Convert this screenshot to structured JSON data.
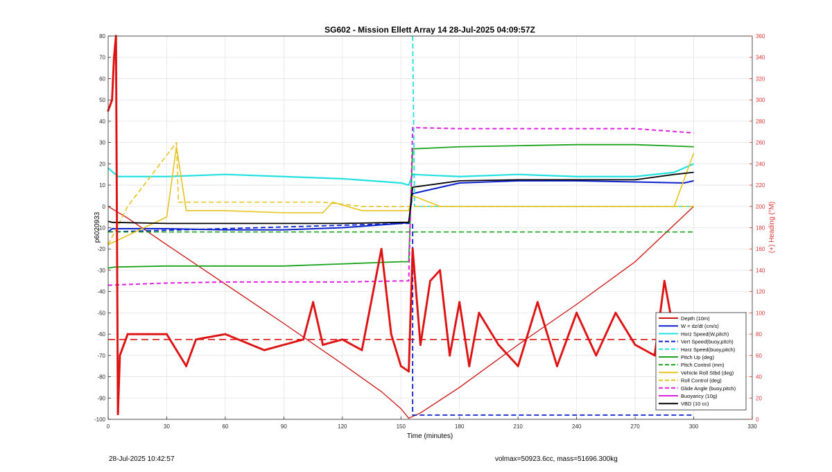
{
  "title": "SG602 - Mission Ellett Array 14 28-Jul-2025 04:09:57Z",
  "footer": {
    "date": "28-Jul-2025 10:42:57",
    "volmass": "volmax=50923.6cc, mass=51696.300kg"
  },
  "chart_data": {
    "type": "line",
    "title": "SG602 - Mission Ellett Array 14 28-Jul-2025 04:09:57Z",
    "xlabel": "Time (minutes)",
    "ylabel_left": "p6020933",
    "ylabel_right": "(+) Heading (°M)",
    "xlim": [
      0,
      330
    ],
    "ylim_left": [
      -100,
      80
    ],
    "ylim_right": [
      0,
      360
    ],
    "xticks": [
      0,
      30,
      60,
      90,
      120,
      150,
      180,
      210,
      240,
      270,
      300,
      330
    ],
    "yticks_left": [
      -100,
      -90,
      -80,
      -70,
      -60,
      -50,
      -40,
      -30,
      -20,
      -10,
      0,
      10,
      20,
      30,
      40,
      50,
      60,
      70,
      80
    ],
    "yticks_right": [
      0,
      20,
      40,
      60,
      80,
      100,
      120,
      140,
      160,
      180,
      200,
      220,
      240,
      260,
      280,
      300,
      320,
      340,
      360
    ],
    "grid": true,
    "legend_position": "bottom-right",
    "colors": {
      "depth": "#cc1111",
      "w": "#0a1fcc",
      "horz": "#22e0e0",
      "green": "#19a319",
      "yellow": "#e6c21a",
      "magenta": "#e020e0",
      "black": "#000000",
      "heading": "#dd1111",
      "right_axis": "#dd3333"
    },
    "legend": [
      {
        "label": "Depth (10m)",
        "color": "#cc1111",
        "dash": false
      },
      {
        "label": "W = dz/dt (cm/s)",
        "color": "#0a1fcc",
        "dash": false
      },
      {
        "label": "Horz Speed(W,pitch)",
        "color": "#22e0e0",
        "dash": false
      },
      {
        "label": "Vert Speed(buoy,pitch)",
        "color": "#0a1fcc",
        "dash": true
      },
      {
        "label": "Horz Speed(buoy,pitch)",
        "color": "#22e0e0",
        "dash": true
      },
      {
        "label": "Pitch Up (deg)",
        "color": "#19a319",
        "dash": false
      },
      {
        "label": "Pitch Control (mm)",
        "color": "#19a319",
        "dash": true
      },
      {
        "label": "Vehicle Roll Stbd (deg)",
        "color": "#e6c21a",
        "dash": false
      },
      {
        "label": "Roll Control (deg)",
        "color": "#e6c21a",
        "dash": true
      },
      {
        "label": "Glide Angle (buoy,pitch)",
        "color": "#e020e0",
        "dash": true
      },
      {
        "label": "Buoyancy (10g)",
        "color": "#e020e0",
        "dash": false
      },
      {
        "label": "VBD (10 cc)",
        "color": "#000000",
        "dash": false
      }
    ],
    "series": [
      {
        "name": "Depth (10m)",
        "x": [
          0,
          10,
          30,
          60,
          90,
          120,
          140,
          150,
          154,
          160,
          180,
          210,
          240,
          270,
          300
        ],
        "y": [
          0,
          -5.5,
          -18,
          -36.5,
          -55,
          -74,
          -87,
          -95,
          -99.5,
          -97,
          -85,
          -65,
          -46,
          -26,
          0
        ]
      },
      {
        "name": "W = dz/dt (cm/s)",
        "x": [
          0,
          2,
          30,
          60,
          90,
          120,
          150,
          154,
          156,
          180,
          210,
          240,
          270,
          295,
          300
        ],
        "y": [
          -12,
          -10.5,
          -10.5,
          -11,
          -11,
          -10,
          -8,
          -7.5,
          6,
          11,
          12,
          12,
          11.5,
          11,
          12
        ]
      },
      {
        "name": "Horz Speed(W,pitch)",
        "x": [
          0,
          5,
          30,
          60,
          90,
          120,
          150,
          154,
          156,
          180,
          210,
          240,
          270,
          290,
          300
        ],
        "y": [
          18,
          14,
          14,
          15,
          14,
          13,
          11,
          10,
          15,
          14,
          15,
          14,
          14,
          16,
          20
        ]
      },
      {
        "name": "Vert Speed(buoy,pitch)",
        "x": [
          0,
          153,
          154,
          156,
          156,
          300
        ],
        "y": [
          -12,
          -8,
          -8,
          -8,
          -98,
          -98
        ]
      },
      {
        "name": "Horz Speed(buoy,pitch)",
        "x": [
          156,
          157,
          300
        ],
        "y": [
          80,
          0,
          0
        ]
      },
      {
        "name": "Pitch Up (deg)",
        "x": [
          0,
          3,
          30,
          60,
          90,
          120,
          150,
          154,
          156,
          180,
          210,
          240,
          270,
          300
        ],
        "y": [
          -29,
          -28.5,
          -28,
          -28,
          -28,
          -27,
          -26,
          -26,
          27,
          28,
          28.5,
          29,
          29,
          28
        ]
      },
      {
        "name": "Pitch Control (mm)",
        "x": [
          0,
          3,
          150,
          154,
          300
        ],
        "y": [
          -12,
          -12,
          -12,
          -12,
          -12
        ]
      },
      {
        "name": "Vehicle Roll Stbd (deg)",
        "x": [
          0,
          30,
          35,
          40,
          60,
          90,
          110,
          115,
          130,
          150,
          154,
          156,
          170,
          200,
          230,
          260,
          290,
          300
        ],
        "y": [
          -18,
          -5,
          28,
          -2,
          -2,
          -3,
          -3,
          2,
          -2,
          -2,
          -2,
          5,
          0,
          0,
          0,
          0,
          0,
          25
        ]
      },
      {
        "name": "Roll Control (deg)",
        "x": [
          0,
          10,
          35,
          36,
          60,
          110,
          130,
          150,
          160,
          200,
          240,
          280,
          300
        ],
        "y": [
          -18,
          0,
          30,
          2,
          2,
          2,
          0,
          0,
          0,
          0,
          0,
          0,
          0
        ]
      },
      {
        "name": "Glide Angle (buoy,pitch)",
        "x": [
          0,
          30,
          60,
          90,
          120,
          150,
          154,
          156,
          180,
          210,
          240,
          270,
          300
        ],
        "y": [
          -37,
          -36,
          -35.5,
          -35.5,
          -35.5,
          -35,
          -35,
          37,
          36.5,
          36.5,
          36.5,
          36.5,
          34.5
        ]
      },
      {
        "name": "VBD (10 cc)",
        "x": [
          0,
          2,
          30,
          60,
          90,
          120,
          150,
          154,
          156,
          180,
          210,
          240,
          270,
          290,
          300
        ],
        "y": [
          -7,
          -7.5,
          -8,
          -8,
          -8,
          -8,
          -7.5,
          -7.5,
          9,
          12,
          12.5,
          12.5,
          12.5,
          15,
          16
        ]
      },
      {
        "name": "(+) Heading (°M)",
        "axis": "right",
        "x": [
          0,
          2,
          3,
          4,
          5,
          6,
          8,
          10,
          20,
          30,
          40,
          45,
          60,
          80,
          100,
          105,
          110,
          120,
          130,
          140,
          145,
          150,
          154,
          156,
          160,
          165,
          170,
          175,
          180,
          185,
          190,
          200,
          210,
          220,
          230,
          240,
          250,
          260,
          270,
          280,
          285,
          290,
          295,
          300
        ],
        "y": [
          290,
          300,
          340,
          360,
          5,
          60,
          70,
          80,
          80,
          80,
          50,
          75,
          80,
          65,
          75,
          110,
          70,
          75,
          65,
          160,
          80,
          50,
          45,
          160,
          70,
          130,
          140,
          60,
          110,
          50,
          100,
          70,
          50,
          110,
          50,
          100,
          60,
          100,
          70,
          60,
          130,
          80,
          60,
          80
        ]
      },
      {
        "name": "Heading reference",
        "axis": "right",
        "x": [
          0,
          300
        ],
        "y": [
          75,
          75
        ]
      }
    ]
  }
}
